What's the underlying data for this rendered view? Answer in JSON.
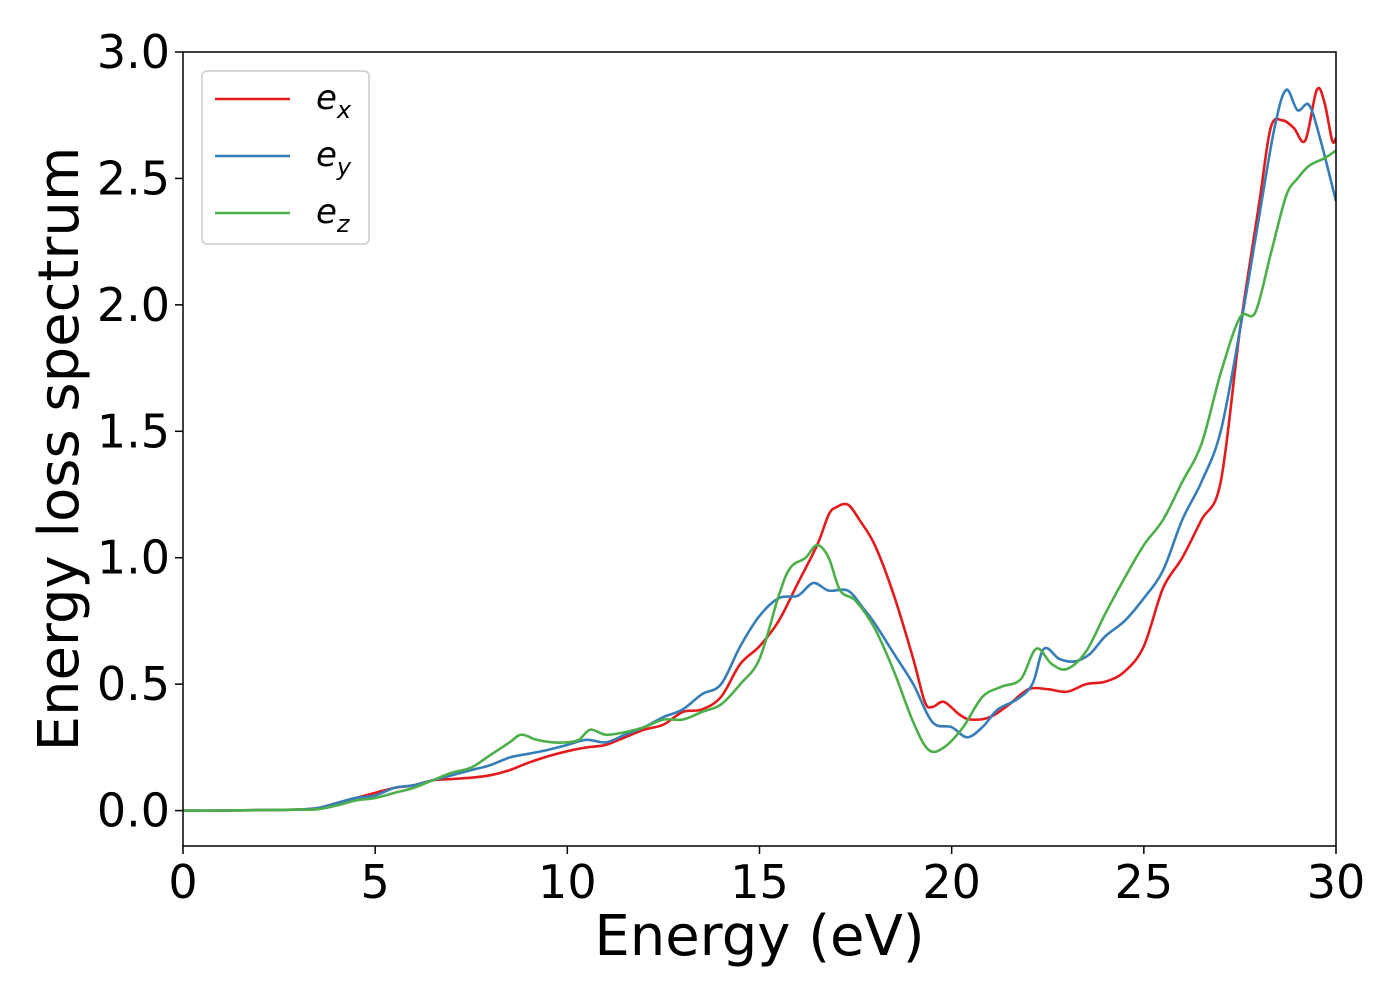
{
  "chart_data": {
    "type": "line",
    "xlabel": "Energy (eV)",
    "ylabel": "Energy loss spectrum",
    "xlim": [
      0,
      30
    ],
    "ylim": [
      -0.14,
      3.0
    ],
    "xticks": [
      0,
      5,
      10,
      15,
      20,
      25,
      30
    ],
    "xtick_labels": [
      "0",
      "5",
      "10",
      "15",
      "20",
      "25",
      "30"
    ],
    "yticks": [
      0.0,
      0.5,
      1.0,
      1.5,
      2.0,
      2.5,
      3.0
    ],
    "ytick_labels": [
      "0.0",
      "0.5",
      "1.0",
      "1.5",
      "2.0",
      "2.5",
      "3.0"
    ],
    "grid": false,
    "legend_position": "top-left",
    "series": [
      {
        "name": "e_x",
        "label_base": "e",
        "label_sub": "x",
        "color": "#e41a1c",
        "points": [
          [
            0,
            0
          ],
          [
            1,
            0
          ],
          [
            2,
            0.002
          ],
          [
            3,
            0.004
          ],
          [
            3.5,
            0.01
          ],
          [
            4,
            0.03
          ],
          [
            4.5,
            0.05
          ],
          [
            5,
            0.07
          ],
          [
            5.5,
            0.09
          ],
          [
            6,
            0.1
          ],
          [
            6.5,
            0.12
          ],
          [
            7,
            0.125
          ],
          [
            7.5,
            0.13
          ],
          [
            8,
            0.14
          ],
          [
            8.5,
            0.16
          ],
          [
            9,
            0.19
          ],
          [
            9.5,
            0.215
          ],
          [
            10,
            0.235
          ],
          [
            10.5,
            0.25
          ],
          [
            11,
            0.26
          ],
          [
            11.5,
            0.29
          ],
          [
            12,
            0.32
          ],
          [
            12.5,
            0.34
          ],
          [
            13,
            0.39
          ],
          [
            13.5,
            0.4
          ],
          [
            14,
            0.45
          ],
          [
            14.5,
            0.58
          ],
          [
            15,
            0.65
          ],
          [
            15.5,
            0.75
          ],
          [
            16,
            0.9
          ],
          [
            16.5,
            1.05
          ],
          [
            16.8,
            1.17
          ],
          [
            17,
            1.2
          ],
          [
            17.3,
            1.21
          ],
          [
            17.6,
            1.15
          ],
          [
            18,
            1.05
          ],
          [
            18.5,
            0.85
          ],
          [
            19,
            0.6
          ],
          [
            19.3,
            0.43
          ],
          [
            19.5,
            0.41
          ],
          [
            19.8,
            0.43
          ],
          [
            20.2,
            0.38
          ],
          [
            20.5,
            0.36
          ],
          [
            21,
            0.37
          ],
          [
            21.5,
            0.42
          ],
          [
            22,
            0.48
          ],
          [
            22.5,
            0.48
          ],
          [
            23,
            0.47
          ],
          [
            23.5,
            0.5
          ],
          [
            24,
            0.51
          ],
          [
            24.5,
            0.55
          ],
          [
            25,
            0.65
          ],
          [
            25.5,
            0.88
          ],
          [
            26,
            1.0
          ],
          [
            26.5,
            1.15
          ],
          [
            27,
            1.3
          ],
          [
            27.5,
            1.9
          ],
          [
            28,
            2.4
          ],
          [
            28.3,
            2.7
          ],
          [
            28.6,
            2.73
          ],
          [
            28.9,
            2.7
          ],
          [
            29.2,
            2.65
          ],
          [
            29.5,
            2.85
          ],
          [
            29.7,
            2.8
          ],
          [
            29.9,
            2.65
          ],
          [
            30,
            2.66
          ]
        ]
      },
      {
        "name": "e_y",
        "label_base": "e",
        "label_sub": "y",
        "color": "#377eb8",
        "points": [
          [
            0,
            0
          ],
          [
            1,
            0
          ],
          [
            2,
            0.002
          ],
          [
            3,
            0.004
          ],
          [
            3.5,
            0.01
          ],
          [
            4,
            0.03
          ],
          [
            4.5,
            0.05
          ],
          [
            5,
            0.06
          ],
          [
            5.5,
            0.09
          ],
          [
            6,
            0.1
          ],
          [
            6.5,
            0.12
          ],
          [
            7,
            0.14
          ],
          [
            7.5,
            0.16
          ],
          [
            8,
            0.18
          ],
          [
            8.5,
            0.21
          ],
          [
            9,
            0.225
          ],
          [
            9.5,
            0.24
          ],
          [
            10,
            0.26
          ],
          [
            10.5,
            0.28
          ],
          [
            11,
            0.27
          ],
          [
            11.5,
            0.3
          ],
          [
            12,
            0.33
          ],
          [
            12.5,
            0.37
          ],
          [
            13,
            0.4
          ],
          [
            13.5,
            0.46
          ],
          [
            14,
            0.5
          ],
          [
            14.5,
            0.65
          ],
          [
            15,
            0.77
          ],
          [
            15.5,
            0.84
          ],
          [
            16,
            0.85
          ],
          [
            16.4,
            0.9
          ],
          [
            16.8,
            0.87
          ],
          [
            17.3,
            0.87
          ],
          [
            17.7,
            0.8
          ],
          [
            18,
            0.74
          ],
          [
            18.5,
            0.62
          ],
          [
            19,
            0.5
          ],
          [
            19.5,
            0.35
          ],
          [
            20,
            0.33
          ],
          [
            20.4,
            0.29
          ],
          [
            20.8,
            0.33
          ],
          [
            21.2,
            0.4
          ],
          [
            21.7,
            0.44
          ],
          [
            22.1,
            0.5
          ],
          [
            22.4,
            0.64
          ],
          [
            22.8,
            0.6
          ],
          [
            23.2,
            0.59
          ],
          [
            23.6,
            0.62
          ],
          [
            24,
            0.69
          ],
          [
            24.5,
            0.75
          ],
          [
            25,
            0.84
          ],
          [
            25.5,
            0.95
          ],
          [
            26,
            1.15
          ],
          [
            26.5,
            1.3
          ],
          [
            27,
            1.5
          ],
          [
            27.5,
            1.9
          ],
          [
            28,
            2.35
          ],
          [
            28.4,
            2.7
          ],
          [
            28.7,
            2.85
          ],
          [
            29.0,
            2.77
          ],
          [
            29.3,
            2.79
          ],
          [
            29.6,
            2.65
          ],
          [
            30,
            2.41
          ]
        ]
      },
      {
        "name": "e_z",
        "label_base": "e",
        "label_sub": "z",
        "color": "#4daf4a",
        "points": [
          [
            0,
            0
          ],
          [
            1,
            0
          ],
          [
            2,
            0.002
          ],
          [
            3,
            0.004
          ],
          [
            3.5,
            0.005
          ],
          [
            4,
            0.02
          ],
          [
            4.5,
            0.04
          ],
          [
            5,
            0.05
          ],
          [
            5.5,
            0.07
          ],
          [
            6,
            0.09
          ],
          [
            6.5,
            0.12
          ],
          [
            7,
            0.15
          ],
          [
            7.5,
            0.17
          ],
          [
            8,
            0.22
          ],
          [
            8.5,
            0.27
          ],
          [
            8.8,
            0.3
          ],
          [
            9.2,
            0.28
          ],
          [
            9.6,
            0.27
          ],
          [
            10,
            0.27
          ],
          [
            10.3,
            0.28
          ],
          [
            10.6,
            0.32
          ],
          [
            11,
            0.3
          ],
          [
            11.5,
            0.31
          ],
          [
            12,
            0.33
          ],
          [
            12.5,
            0.36
          ],
          [
            13,
            0.36
          ],
          [
            13.5,
            0.39
          ],
          [
            14,
            0.42
          ],
          [
            14.5,
            0.5
          ],
          [
            15,
            0.6
          ],
          [
            15.5,
            0.85
          ],
          [
            15.8,
            0.96
          ],
          [
            16.2,
            1.0
          ],
          [
            16.5,
            1.05
          ],
          [
            16.8,
            1.0
          ],
          [
            17.1,
            0.87
          ],
          [
            17.5,
            0.83
          ],
          [
            18,
            0.72
          ],
          [
            18.5,
            0.55
          ],
          [
            19,
            0.35
          ],
          [
            19.4,
            0.24
          ],
          [
            19.8,
            0.25
          ],
          [
            20.3,
            0.33
          ],
          [
            20.8,
            0.45
          ],
          [
            21.3,
            0.49
          ],
          [
            21.8,
            0.52
          ],
          [
            22.2,
            0.64
          ],
          [
            22.6,
            0.58
          ],
          [
            23,
            0.56
          ],
          [
            23.5,
            0.63
          ],
          [
            24,
            0.78
          ],
          [
            24.5,
            0.92
          ],
          [
            25,
            1.05
          ],
          [
            25.5,
            1.15
          ],
          [
            26,
            1.3
          ],
          [
            26.5,
            1.45
          ],
          [
            27,
            1.73
          ],
          [
            27.5,
            1.95
          ],
          [
            27.9,
            1.97
          ],
          [
            28.3,
            2.2
          ],
          [
            28.7,
            2.43
          ],
          [
            29,
            2.5
          ],
          [
            29.3,
            2.55
          ],
          [
            29.7,
            2.58
          ],
          [
            30,
            2.61
          ]
        ]
      }
    ]
  }
}
